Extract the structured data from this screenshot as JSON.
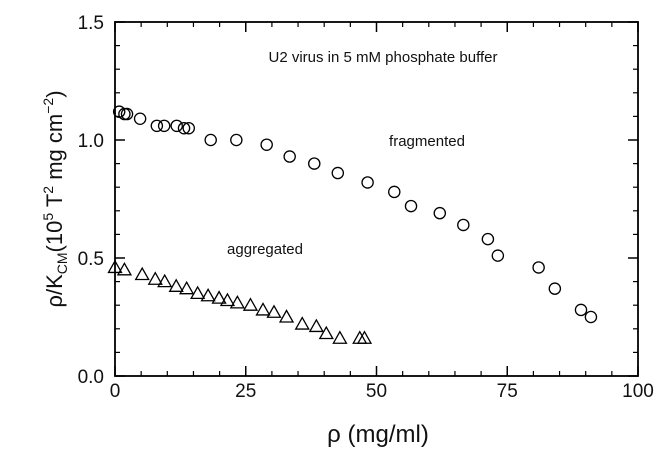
{
  "chart_data": {
    "type": "scatter",
    "title": "",
    "xlabel": "ρ (mg/ml)",
    "ylabel": "ρ/K_CM (10^5 T^2 mg cm^-2)",
    "ylabel_parts": {
      "rho": "ρ/K",
      "sub": "CM",
      "open": "(10",
      "exp5": "5",
      "t": " T",
      "exp2": "2",
      "mg": " mg cm",
      "expneg2": "−2",
      "close": ")"
    },
    "xlim": [
      0,
      100
    ],
    "ylim": [
      0,
      1.5
    ],
    "xticks": [
      0,
      25,
      50,
      75,
      100
    ],
    "yticks": [
      0.0,
      0.5,
      1.0,
      1.5
    ],
    "xtick_labels": [
      "0",
      "25",
      "50",
      "75",
      "100"
    ],
    "ytick_labels": [
      "0.0",
      "0.5",
      "1.0",
      "1.5"
    ],
    "grid": false,
    "annotations": {
      "sample": "U2 virus in 5 mM phosphate buffer",
      "fragmented": "fragmented",
      "aggregated": "aggregated"
    },
    "series": [
      {
        "marker": "circle",
        "points": [
          [
            0.8,
            1.12
          ],
          [
            1.8,
            1.11
          ],
          [
            2.3,
            1.11
          ],
          [
            4.8,
            1.09
          ],
          [
            8.0,
            1.06
          ],
          [
            9.4,
            1.06
          ],
          [
            11.8,
            1.06
          ],
          [
            13.2,
            1.05
          ],
          [
            14.1,
            1.05
          ],
          [
            18.3,
            1.0
          ],
          [
            23.2,
            1.0
          ],
          [
            29.0,
            0.98
          ],
          [
            33.4,
            0.93
          ],
          [
            38.1,
            0.9
          ],
          [
            42.6,
            0.86
          ],
          [
            48.3,
            0.82
          ],
          [
            53.4,
            0.78
          ],
          [
            56.6,
            0.72
          ],
          [
            62.1,
            0.69
          ],
          [
            66.6,
            0.64
          ],
          [
            71.3,
            0.58
          ],
          [
            73.2,
            0.51
          ],
          [
            81.0,
            0.46
          ],
          [
            84.1,
            0.37
          ],
          [
            89.1,
            0.28
          ],
          [
            91.0,
            0.25
          ]
        ]
      },
      {
        "marker": "triangle",
        "points": [
          [
            0.0,
            0.46
          ],
          [
            1.8,
            0.45
          ],
          [
            5.2,
            0.43
          ],
          [
            7.7,
            0.41
          ],
          [
            9.5,
            0.4
          ],
          [
            11.7,
            0.38
          ],
          [
            13.7,
            0.37
          ],
          [
            15.8,
            0.35
          ],
          [
            17.8,
            0.34
          ],
          [
            19.9,
            0.33
          ],
          [
            21.5,
            0.32
          ],
          [
            23.4,
            0.31
          ],
          [
            25.9,
            0.3
          ],
          [
            28.3,
            0.28
          ],
          [
            30.4,
            0.27
          ],
          [
            32.8,
            0.25
          ],
          [
            35.8,
            0.22
          ],
          [
            38.5,
            0.21
          ],
          [
            40.4,
            0.18
          ],
          [
            43.0,
            0.16
          ],
          [
            46.8,
            0.16
          ],
          [
            47.7,
            0.16
          ]
        ]
      }
    ]
  }
}
